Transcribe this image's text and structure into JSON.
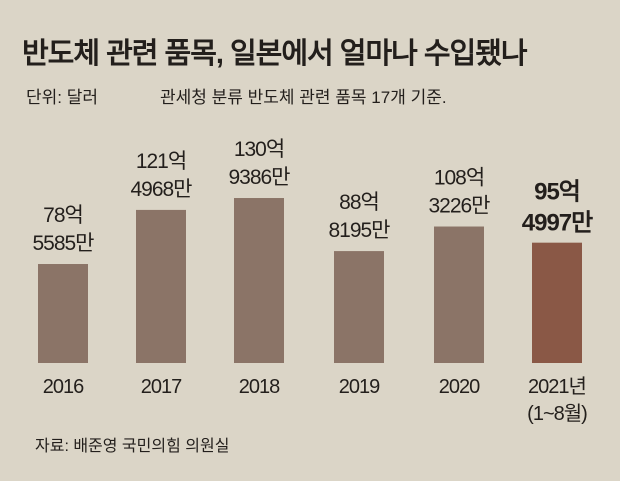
{
  "chart_data": {
    "type": "bar",
    "title": "반도체 관련 품목, 일본에서 얼마나 수입됐나",
    "unit_label": "단위: 달러",
    "note": "관세청 분류 반도체 관련 품목 17개 기준.",
    "source": "자료: 배준영 국민의힘 의원실",
    "categories": [
      "2016",
      "2017",
      "2018",
      "2019",
      "2020",
      "2021년"
    ],
    "category_sublabels": [
      "",
      "",
      "",
      "",
      "",
      "(1~8월)"
    ],
    "values": [
      7855850000,
      12149680000,
      13093860000,
      8881950000,
      10832260000,
      9549970000
    ],
    "value_labels": [
      [
        "78억",
        "5585만"
      ],
      [
        "121억",
        "4968만"
      ],
      [
        "130억",
        "9386만"
      ],
      [
        "88억",
        "8195만"
      ],
      [
        "108억",
        "3226만"
      ],
      [
        "95억",
        "4997만"
      ]
    ],
    "highlight_index": 5,
    "ylim": [
      0,
      15000000000
    ],
    "grid": false,
    "colors": {
      "bar": "#8b7467",
      "highlight": "#8a5846",
      "background": "#dbd5c7"
    }
  }
}
